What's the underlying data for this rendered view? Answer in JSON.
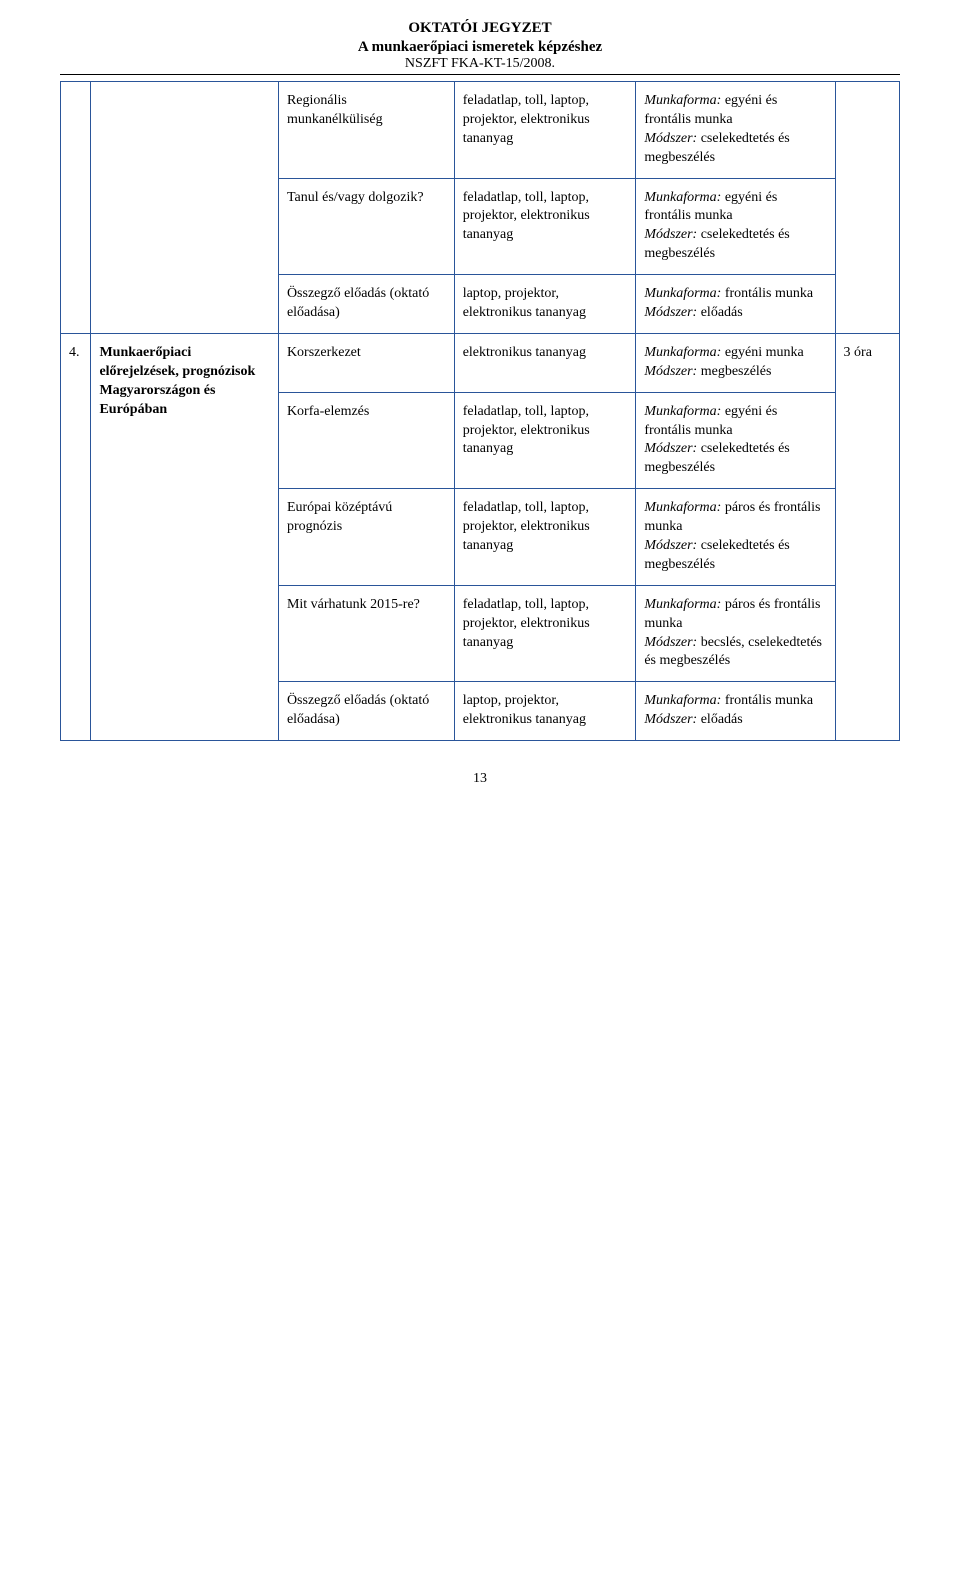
{
  "header": {
    "title": "OKTATÓI JEGYZET",
    "subtitle": "A munkaerőpiaci ismeretek képzéshez",
    "code": "NSZFT FKA-KT-15/2008."
  },
  "section": {
    "num": "4.",
    "topic": "Munkaerőpiaci előrejelzések, prognózisok Magyarországon és Európában",
    "time": "3 óra"
  },
  "rows": [
    {
      "sub": "Regionális munkanélküliség",
      "tool": "feladatlap, toll, laptop, projektor, elektronikus tananyag",
      "method_label1": "Munkaforma:",
      "method_val1": "egyéni és frontális munka",
      "method_label2": "Módszer:",
      "method_val2": "cselekedtetés és megbeszélés"
    },
    {
      "sub": "Tanul és/vagy dolgozik?",
      "tool": "feladatlap, toll, laptop, projektor, elektronikus tananyag",
      "method_label1": "Munkaforma:",
      "method_val1": "egyéni és frontális munka",
      "method_label2": "Módszer:",
      "method_val2": "cselekedtetés és megbeszélés"
    },
    {
      "sub": "Összegző előadás (oktató előadása)",
      "tool": "laptop, projektor, elektronikus tananyag",
      "method_label1": "Munkaforma:",
      "method_val1": "frontális munka",
      "method_label2": "Módszer:",
      "method_val2": " előadás"
    },
    {
      "sub": "Korszerkezet",
      "tool": "elektronikus tananyag",
      "method_label1": "Munkaforma:",
      "method_val1": "egyéni munka",
      "method_label2": "Módszer:",
      "method_val2": "megbeszélés"
    },
    {
      "sub": "Korfa-elemzés",
      "tool": "feladatlap, toll, laptop, projektor, elektronikus tananyag",
      "method_label1": "Munkaforma:",
      "method_val1": "egyéni és frontális munka",
      "method_label2": "Módszer:",
      "method_val2": "cselekedtetés és megbeszélés"
    },
    {
      "sub": "Európai középtávú prognózis",
      "tool": "feladatlap, toll, laptop, projektor, elektronikus tananyag",
      "method_label1": "Munkaforma:",
      "method_val1": " páros és frontális munka",
      "method_label2": "Módszer:",
      "method_val2": "cselekedtetés és megbeszélés"
    },
    {
      "sub": "Mit várhatunk 2015-re?",
      "tool": "feladatlap, toll, laptop, projektor, elektronikus tananyag",
      "method_label1": "Munkaforma:",
      "method_val1": " páros és frontális munka",
      "method_label2": "Módszer:",
      "method_val2": " becslés, cselekedtetés és megbeszélés"
    },
    {
      "sub": "Összegző előadás (oktató előadása)",
      "tool": "laptop, projektor, elektronikus tananyag",
      "method_label1": "Munkaforma:",
      "method_val1": "frontális munka",
      "method_label2": "Módszer:",
      "method_val2": " előadás"
    }
  ],
  "page_number": "13"
}
